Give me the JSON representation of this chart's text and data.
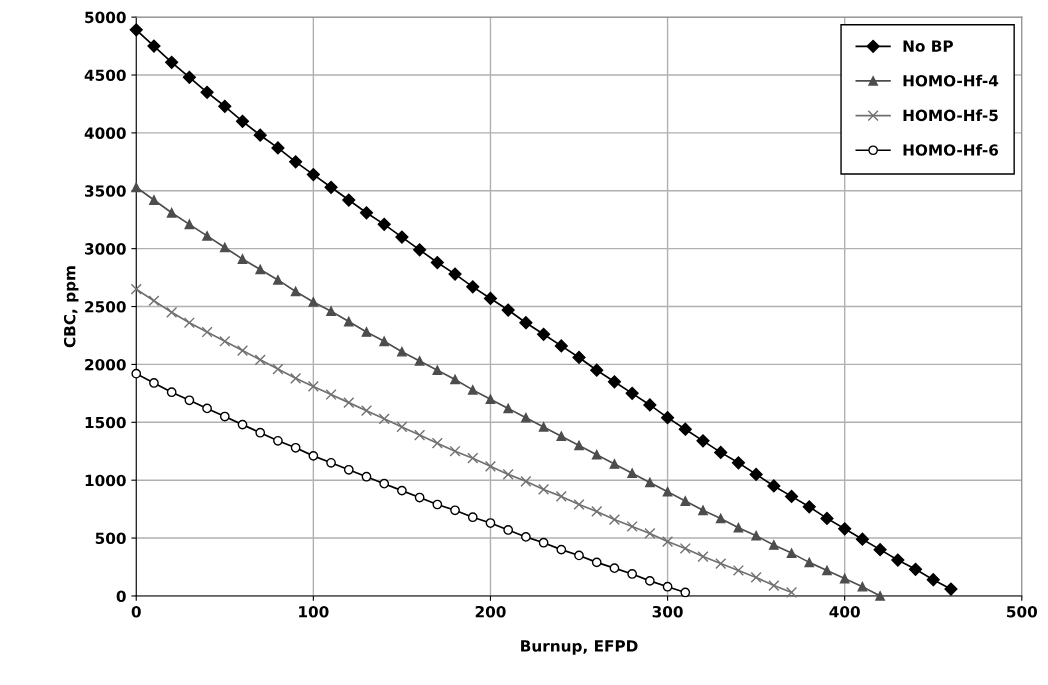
{
  "chart_data": {
    "type": "line",
    "xlabel": "Burnup, EFPD",
    "ylabel": "CBC, ppm",
    "xlim": [
      0,
      500
    ],
    "xticks": [
      0,
      100,
      200,
      300,
      400,
      500
    ],
    "ylim": [
      0,
      5000
    ],
    "yticks": [
      0,
      500,
      1000,
      1500,
      2000,
      2500,
      3000,
      3500,
      4000,
      4500,
      5000
    ],
    "grid": true,
    "legend": "top right",
    "series": [
      {
        "name": "No BP",
        "color": "#000000",
        "marker": "diamond",
        "x": [
          0,
          10,
          20,
          30,
          40,
          50,
          60,
          70,
          80,
          90,
          100,
          110,
          120,
          130,
          140,
          150,
          160,
          170,
          180,
          190,
          200,
          210,
          220,
          230,
          240,
          250,
          260,
          270,
          280,
          290,
          300,
          310,
          320,
          330,
          340,
          350,
          360,
          370,
          380,
          390,
          400,
          410,
          420,
          430,
          440,
          450,
          460
        ],
        "values": [
          4890,
          4750,
          4610,
          4480,
          4350,
          4230,
          4100,
          3980,
          3870,
          3750,
          3640,
          3530,
          3420,
          3310,
          3210,
          3100,
          2990,
          2880,
          2780,
          2670,
          2570,
          2470,
          2360,
          2260,
          2160,
          2060,
          1950,
          1850,
          1750,
          1650,
          1540,
          1440,
          1340,
          1240,
          1150,
          1050,
          950,
          860,
          770,
          670,
          580,
          490,
          400,
          310,
          230,
          140,
          60
        ]
      },
      {
        "name": "HOMO-Hf-4",
        "color": "#4d4d4d",
        "marker": "triangle",
        "x": [
          0,
          10,
          20,
          30,
          40,
          50,
          60,
          70,
          80,
          90,
          100,
          110,
          120,
          130,
          140,
          150,
          160,
          170,
          180,
          190,
          200,
          210,
          220,
          230,
          240,
          250,
          260,
          270,
          280,
          290,
          300,
          310,
          320,
          330,
          340,
          350,
          360,
          370,
          380,
          390,
          400,
          410,
          420
        ],
        "values": [
          3530,
          3420,
          3310,
          3210,
          3110,
          3010,
          2910,
          2820,
          2730,
          2630,
          2540,
          2460,
          2370,
          2280,
          2200,
          2110,
          2030,
          1950,
          1870,
          1780,
          1700,
          1620,
          1540,
          1460,
          1380,
          1300,
          1220,
          1140,
          1060,
          980,
          900,
          820,
          740,
          670,
          590,
          520,
          440,
          370,
          290,
          220,
          150,
          80,
          0
        ]
      },
      {
        "name": "HOMO-Hf-5",
        "color": "#707070",
        "marker": "cross",
        "x": [
          0,
          10,
          20,
          30,
          40,
          50,
          60,
          70,
          80,
          90,
          100,
          110,
          120,
          130,
          140,
          150,
          160,
          170,
          180,
          190,
          200,
          210,
          220,
          230,
          240,
          250,
          260,
          270,
          280,
          290,
          300,
          310,
          320,
          330,
          340,
          350,
          360,
          370
        ],
        "values": [
          2650,
          2550,
          2450,
          2360,
          2280,
          2200,
          2120,
          2040,
          1960,
          1880,
          1810,
          1740,
          1670,
          1600,
          1530,
          1460,
          1390,
          1320,
          1250,
          1190,
          1120,
          1050,
          990,
          920,
          860,
          790,
          730,
          660,
          600,
          540,
          470,
          410,
          340,
          280,
          220,
          160,
          90,
          30
        ]
      },
      {
        "name": "HOMO-Hf-6",
        "color": "#000000",
        "marker": "circle",
        "x": [
          0,
          10,
          20,
          30,
          40,
          50,
          60,
          70,
          80,
          90,
          100,
          110,
          120,
          130,
          140,
          150,
          160,
          170,
          180,
          190,
          200,
          210,
          220,
          230,
          240,
          250,
          260,
          270,
          280,
          290,
          300,
          310
        ],
        "values": [
          1920,
          1840,
          1760,
          1690,
          1620,
          1550,
          1480,
          1410,
          1340,
          1280,
          1210,
          1150,
          1090,
          1030,
          970,
          910,
          850,
          790,
          740,
          680,
          630,
          570,
          510,
          460,
          400,
          350,
          290,
          240,
          190,
          130,
          80,
          30
        ]
      }
    ]
  }
}
